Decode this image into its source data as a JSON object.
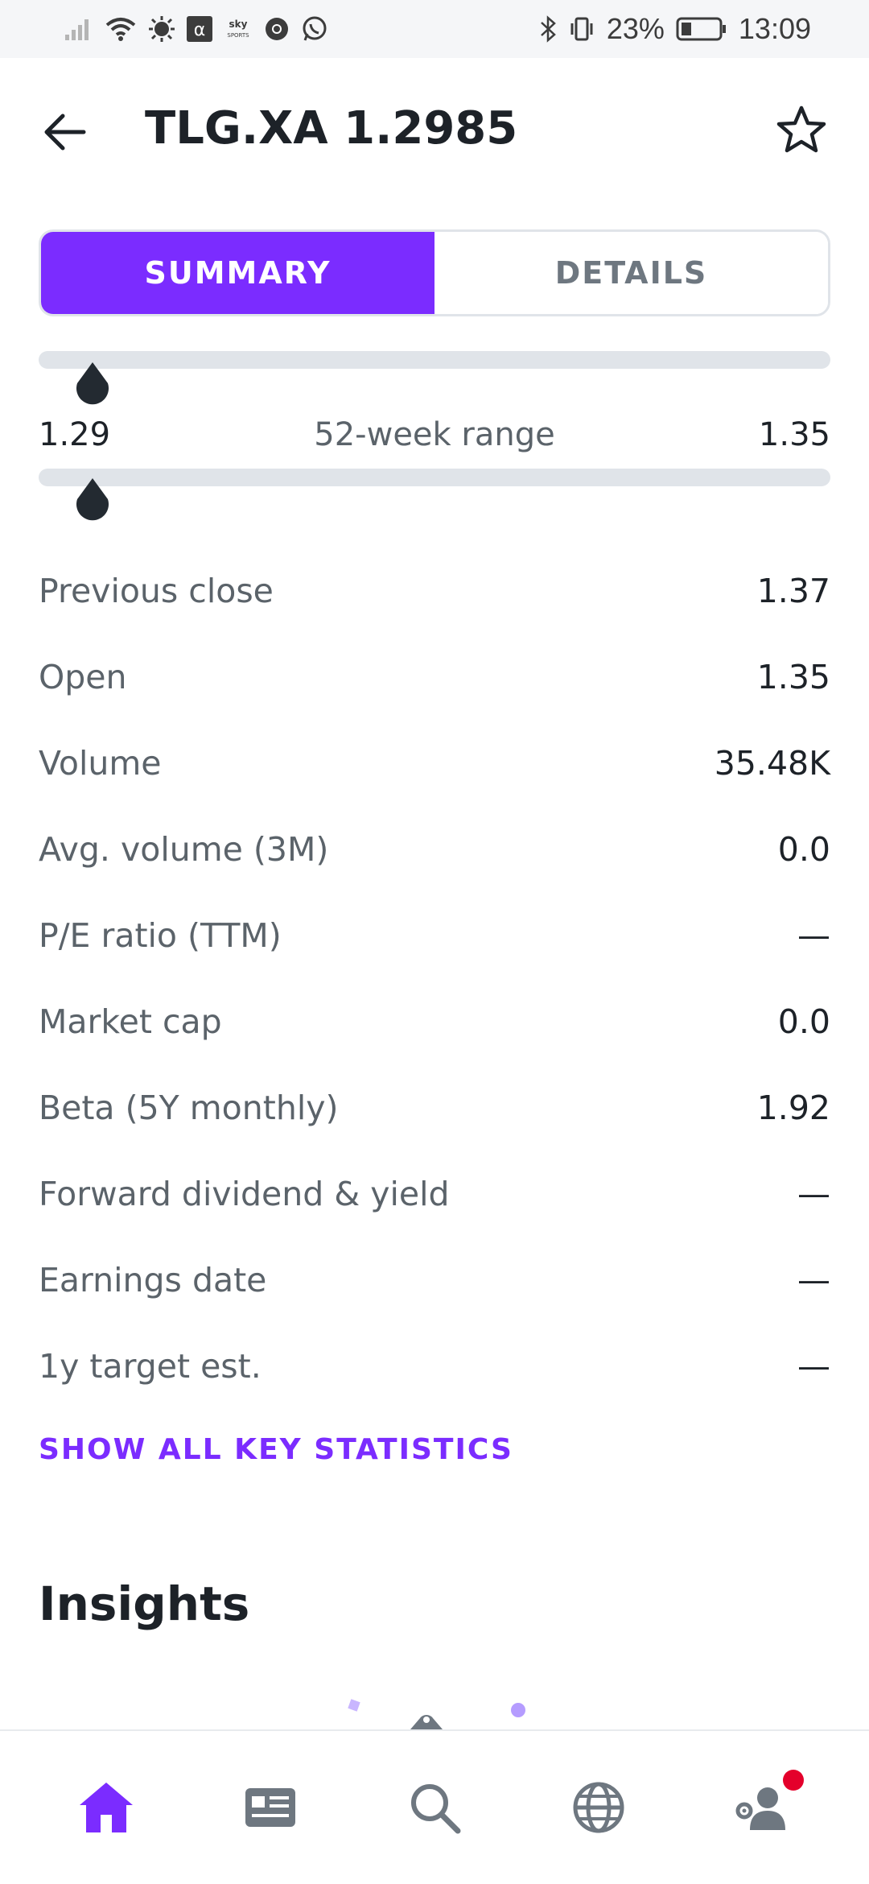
{
  "status_bar": {
    "battery": "23%",
    "time": "13:09",
    "icons_left": [
      "signal-icon",
      "wifi-icon",
      "brightness-icon",
      "alpha-app-icon",
      "sky-sports-icon",
      "chrome-icon",
      "whatsapp-icon"
    ],
    "sky_label_top": "sky",
    "sky_label_bottom": "SPORTS",
    "alpha_glyph": "α",
    "icons_right": [
      "bluetooth-icon",
      "vibrate-icon",
      "battery-icon"
    ]
  },
  "header": {
    "title": "TLG.XA 1.2985"
  },
  "tabs": {
    "summary": "SUMMARY",
    "details": "DETAILS"
  },
  "range": {
    "low": "1.29",
    "label": "52-week range",
    "high": "1.35",
    "day_marker_fraction": 0.06,
    "week_marker_fraction": 0.06
  },
  "stats": [
    {
      "label": "Previous close",
      "value": "1.37"
    },
    {
      "label": "Open",
      "value": "1.35"
    },
    {
      "label": "Volume",
      "value": "35.48K"
    },
    {
      "label": "Avg. volume (3M)",
      "value": "0.0"
    },
    {
      "label": "P/E ratio (TTM)",
      "value": "—"
    },
    {
      "label": "Market cap",
      "value": "0.0"
    },
    {
      "label": "Beta (5Y monthly)",
      "value": "1.92"
    },
    {
      "label": "Forward dividend & yield",
      "value": "—"
    },
    {
      "label": "Earnings date",
      "value": "—"
    },
    {
      "label": "1y target est.",
      "value": "—"
    }
  ],
  "show_all": "SHOW ALL KEY STATISTICS",
  "insights": {
    "title": "Insights"
  },
  "bottom_nav": [
    "home-icon",
    "news-icon",
    "search-icon",
    "globe-icon",
    "profile-settings-icon"
  ],
  "colors": {
    "accent": "#7b2cff",
    "notification": "#e4002b"
  }
}
